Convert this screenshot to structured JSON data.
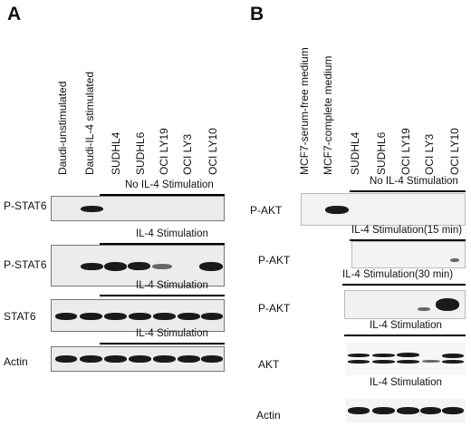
{
  "panelA": {
    "letter": "A",
    "lanes": [
      "Daudi-unstimulated",
      "Daudi-IL-4 stimulated",
      "SUDHL4",
      "SUDHL6",
      "OCI LY19",
      "OCI LY3",
      "OCI LY10"
    ],
    "stim_labels": [
      "No IL-4 Stimulation",
      "IL-4 Stimulation",
      "IL-4 Stimulation",
      "IL-4 Stimulation"
    ],
    "rows": [
      "P-STAT6",
      "P-STAT6",
      "STAT6",
      "Actin"
    ]
  },
  "panelB": {
    "letter": "B",
    "lanes": [
      "MCF7-serum-free medium",
      "MCF7-complete medium",
      "SUDHL4",
      "SUDHL6",
      "OCI LY19",
      "OCI LY3",
      "OCI LY10"
    ],
    "stim_labels": [
      "No IL-4 Stimulation",
      "IL-4 Stimulation(15 min)",
      "IL-4 Stimulation(30 min)",
      "IL-4 Stimulation",
      "IL-4 Stimulation"
    ],
    "rows": [
      "P-AKT",
      "P-AKT",
      "P-AKT",
      "AKT",
      "Actin"
    ]
  }
}
